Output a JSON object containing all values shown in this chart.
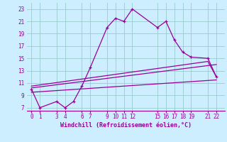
{
  "xlabel": "Windchill (Refroidissement éolien,°C)",
  "bg_color": "#cceeff",
  "line_color": "#990099",
  "grid_color": "#99cccc",
  "main_x": [
    0,
    1,
    3,
    4,
    5,
    6,
    7,
    9,
    10,
    11,
    12,
    15,
    16,
    17,
    18,
    19,
    21,
    22
  ],
  "main_y": [
    10,
    7,
    8,
    7,
    8,
    10.5,
    13.5,
    20,
    21.5,
    21,
    23,
    20,
    21,
    18,
    16,
    15.2,
    15,
    12
  ],
  "line2_x": [
    0,
    22
  ],
  "line2_y": [
    9.5,
    11.5
  ],
  "line3_x": [
    0,
    22
  ],
  "line3_y": [
    10.2,
    14.0
  ],
  "line4_x": [
    0,
    21,
    22
  ],
  "line4_y": [
    10.5,
    14.5,
    12.0
  ],
  "xlim": [
    -0.5,
    23
  ],
  "ylim": [
    6.5,
    24.0
  ],
  "xticks": [
    0,
    1,
    3,
    4,
    6,
    7,
    9,
    10,
    11,
    12,
    15,
    16,
    17,
    18,
    19,
    21,
    22
  ],
  "yticks": [
    7,
    9,
    11,
    13,
    15,
    17,
    19,
    21,
    23
  ],
  "figsize": [
    3.2,
    2.0
  ],
  "dpi": 100
}
